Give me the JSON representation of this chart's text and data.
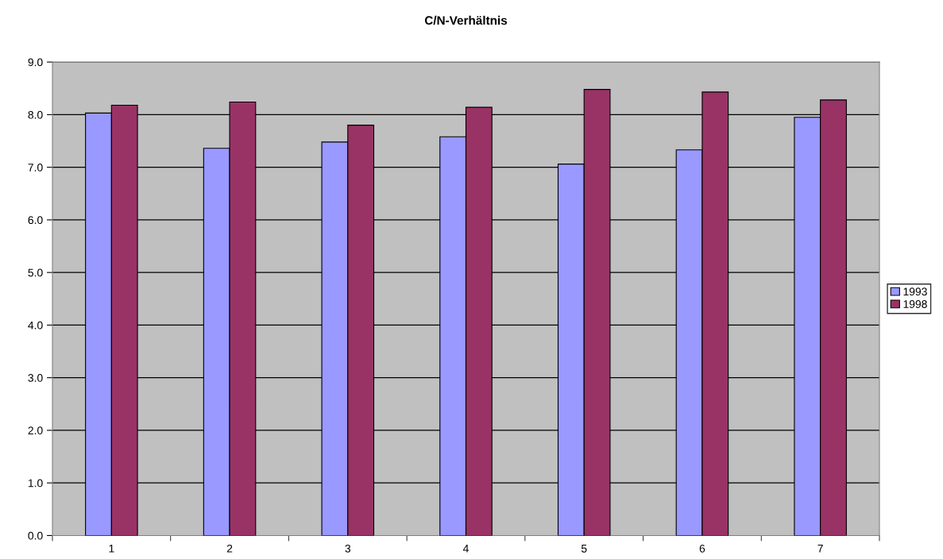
{
  "chart_data": {
    "type": "bar",
    "title": "C/N-Verhältnis",
    "categories": [
      "1",
      "2",
      "3",
      "4",
      "5",
      "6",
      "7"
    ],
    "series": [
      {
        "name": "1993",
        "color": "#9999ff",
        "values": [
          8.03,
          7.36,
          7.48,
          7.58,
          7.06,
          7.33,
          7.95
        ]
      },
      {
        "name": "1998",
        "color": "#993366",
        "values": [
          8.18,
          8.24,
          7.8,
          8.14,
          8.48,
          8.43,
          8.28
        ]
      }
    ],
    "ylim": [
      0,
      9
    ],
    "yticks": [
      {
        "value": 0,
        "label": "0.0"
      },
      {
        "value": 1,
        "label": "1.0"
      },
      {
        "value": 2,
        "label": "2.0"
      },
      {
        "value": 3,
        "label": "3.0"
      },
      {
        "value": 4,
        "label": "4.0"
      },
      {
        "value": 5,
        "label": "5.0"
      },
      {
        "value": 6,
        "label": "6.0"
      },
      {
        "value": 7,
        "label": "7.0"
      },
      {
        "value": 8,
        "label": "8.0"
      },
      {
        "value": 9,
        "label": "9.0"
      }
    ],
    "grid": "y",
    "legend": "right"
  }
}
